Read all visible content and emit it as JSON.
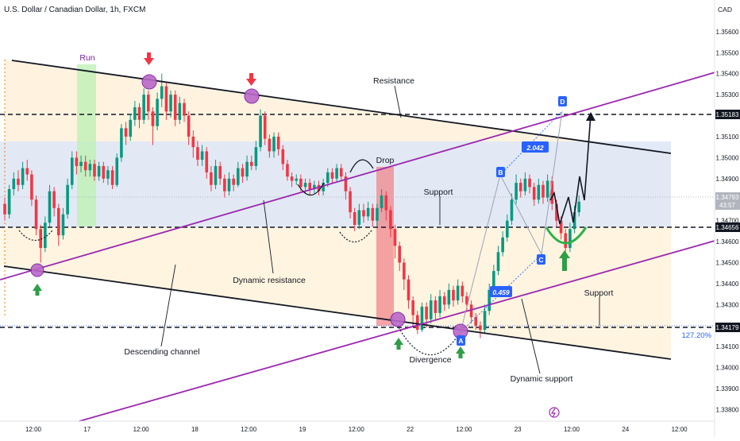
{
  "header": {
    "title": "U.S. Dollar / Canadian Dollar, 1h, FXCM",
    "currency": "CAD"
  },
  "colors": {
    "up": "#089981",
    "down": "#f23645",
    "channel": "#131722",
    "trendline": "#9c27b0",
    "fill_orange": "#fff3e0",
    "fill_blue": "#dde6f7",
    "fill_green": "#bff0b5",
    "fill_red": "#f0868c",
    "marker_purple": "#ba68c8",
    "arrow_red": "#f23645",
    "arrow_green": "#2e9e47",
    "tag_blue": "#2962ff",
    "cup_green": "#2bb24c",
    "last_price_gray": "#b2b5be",
    "fib_blue": "#2962ff"
  },
  "annotations": {
    "run": "Run",
    "resistance": "Resistance",
    "drop": "Drop",
    "support_mid": "Support",
    "support_right": "Support",
    "dynamic_resistance": "Dynamic resistance",
    "descending_channel": "Descending channel",
    "divergence": "Divergence",
    "dynamic_support": "Dynamic support",
    "fib_label": "127.20%",
    "ratio_bd": "2.042",
    "ratio_ac": "0.459",
    "point_a": "A",
    "point_b": "B",
    "point_c": "C",
    "point_d": "D"
  },
  "price_tags": {
    "level_1": "1.35183",
    "level_2": "1.34656",
    "level_3": "1.34179",
    "last_price": "1.34793",
    "countdown": "43:57"
  },
  "chart_data": {
    "type": "candlestick",
    "symbol": "U.S. Dollar / Canadian Dollar",
    "timeframe": "1h",
    "source": "FXCM",
    "yaxis": {
      "label": "CAD",
      "ticks": [
        1.356,
        1.355,
        1.354,
        1.353,
        1.352,
        1.351,
        1.35,
        1.349,
        1.348,
        1.347,
        1.346,
        1.345,
        1.344,
        1.343,
        1.342,
        1.341,
        1.34,
        1.339,
        1.338
      ],
      "tick_labels": [
        "1.35600",
        "1.35500",
        "1.35400",
        "1.35300",
        "1.35200",
        "1.35100",
        "1.35000",
        "1.34900",
        "1.34800",
        "1.34700",
        "1.34600",
        "1.34500",
        "1.34400",
        "1.34300",
        "1.34200",
        "1.34100",
        "1.34000",
        "1.33900",
        "1.33800"
      ],
      "range": [
        1.33745,
        1.35713
      ]
    },
    "xaxis": {
      "tick_labels": [
        "12:00",
        "17",
        "12:00",
        "18",
        "12:00",
        "19",
        "12:00",
        "22",
        "12:00",
        "23",
        "12:00",
        "24",
        "12:00"
      ],
      "tick_hours": [
        0,
        12,
        24,
        36,
        48,
        60,
        72,
        84,
        96,
        108,
        120,
        132,
        144
      ]
    },
    "horizontal_levels": [
      1.35183,
      1.34656,
      1.34179
    ],
    "last_price": 1.34793,
    "fib_extension": "127.20%",
    "harmonic_points": {
      "A": 1.34165,
      "B": 1.34945,
      "C": 1.34555,
      "D": 1.35211
    },
    "ratios": {
      "BD": 2.042,
      "AC": 0.459
    },
    "candles": [
      [
        1.3478,
        1.3473,
        1.3481,
        1.347
      ],
      [
        1.3473,
        1.3485,
        1.3487,
        1.3471
      ],
      [
        1.3485,
        1.349,
        1.3493,
        1.3482
      ],
      [
        1.349,
        1.3487,
        1.3494,
        1.3484
      ],
      [
        1.3487,
        1.3495,
        1.3498,
        1.3485
      ],
      [
        1.3495,
        1.3492,
        1.3499,
        1.3489
      ],
      [
        1.3492,
        1.348,
        1.3494,
        1.3477
      ],
      [
        1.348,
        1.3466,
        1.3482,
        1.3463
      ],
      [
        1.3466,
        1.3457,
        1.3468,
        1.345
      ],
      [
        1.3457,
        1.3469,
        1.3472,
        1.3455
      ],
      [
        1.3469,
        1.3484,
        1.3487,
        1.3467
      ],
      [
        1.3484,
        1.3476,
        1.3486,
        1.3472
      ],
      [
        1.3476,
        1.3463,
        1.3478,
        1.3458
      ],
      [
        1.3463,
        1.3473,
        1.3476,
        1.3461
      ],
      [
        1.3473,
        1.3487,
        1.349,
        1.3471
      ],
      [
        1.3487,
        1.35,
        1.3503,
        1.3485
      ],
      [
        1.35,
        1.3496,
        1.3503,
        1.3492
      ],
      [
        1.3496,
        1.3498,
        1.3501,
        1.3493
      ],
      [
        1.3498,
        1.3494,
        1.3501,
        1.3491
      ],
      [
        1.3494,
        1.3497,
        1.3499,
        1.3491
      ],
      [
        1.3497,
        1.3491,
        1.3499,
        1.3489
      ],
      [
        1.3491,
        1.3496,
        1.3498,
        1.3489
      ],
      [
        1.3496,
        1.349,
        1.3498,
        1.3488
      ],
      [
        1.349,
        1.3494,
        1.3496,
        1.3487
      ],
      [
        1.3494,
        1.3487,
        1.3496,
        1.3485
      ],
      [
        1.3487,
        1.35,
        1.3502,
        1.3486
      ],
      [
        1.35,
        1.3514,
        1.3516,
        1.3498
      ],
      [
        1.3514,
        1.351,
        1.3517,
        1.3506
      ],
      [
        1.351,
        1.3518,
        1.3521,
        1.3508
      ],
      [
        1.3518,
        1.3524,
        1.3527,
        1.3515
      ],
      [
        1.3524,
        1.3518,
        1.3526,
        1.3514
      ],
      [
        1.3518,
        1.353,
        1.3533,
        1.3516
      ],
      [
        1.353,
        1.3522,
        1.3532,
        1.3518
      ],
      [
        1.3522,
        1.3515,
        1.3524,
        1.3506
      ],
      [
        1.3515,
        1.3528,
        1.3531,
        1.3513
      ],
      [
        1.3528,
        1.3534,
        1.354,
        1.3524
      ],
      [
        1.3534,
        1.3522,
        1.3536,
        1.3518
      ],
      [
        1.3522,
        1.353,
        1.3532,
        1.3519
      ],
      [
        1.353,
        1.3518,
        1.3532,
        1.3515
      ],
      [
        1.3518,
        1.3526,
        1.3529,
        1.3516
      ],
      [
        1.3526,
        1.352,
        1.3528,
        1.3517
      ],
      [
        1.352,
        1.351,
        1.3522,
        1.3506
      ],
      [
        1.351,
        1.3505,
        1.3513,
        1.35
      ],
      [
        1.3505,
        1.3499,
        1.3508,
        1.3496
      ],
      [
        1.3499,
        1.3503,
        1.3506,
        1.3496
      ],
      [
        1.3503,
        1.3493,
        1.3505,
        1.349
      ],
      [
        1.3493,
        1.3487,
        1.3496,
        1.3484
      ],
      [
        1.3487,
        1.3496,
        1.3499,
        1.3485
      ],
      [
        1.3496,
        1.349,
        1.3498,
        1.3487
      ],
      [
        1.349,
        1.3484,
        1.3492,
        1.3481
      ],
      [
        1.3484,
        1.349,
        1.3493,
        1.3482
      ],
      [
        1.349,
        1.3487,
        1.3492,
        1.3484
      ],
      [
        1.3487,
        1.3495,
        1.3498,
        1.3486
      ],
      [
        1.3495,
        1.3491,
        1.3497,
        1.3488
      ],
      [
        1.3491,
        1.3498,
        1.3501,
        1.3489
      ],
      [
        1.3498,
        1.3496,
        1.3501,
        1.3494
      ],
      [
        1.3496,
        1.3505,
        1.3508,
        1.3494
      ],
      [
        1.3505,
        1.352,
        1.3523,
        1.3503
      ],
      [
        1.352,
        1.3509,
        1.3522,
        1.3506
      ],
      [
        1.3509,
        1.3503,
        1.3511,
        1.35
      ],
      [
        1.3503,
        1.351,
        1.3512,
        1.35
      ],
      [
        1.351,
        1.3504,
        1.3512,
        1.3501
      ],
      [
        1.3504,
        1.3497,
        1.3506,
        1.3494
      ],
      [
        1.3497,
        1.3491,
        1.3499,
        1.3489
      ],
      [
        1.3491,
        1.3489,
        1.3493,
        1.3486
      ],
      [
        1.3489,
        1.349,
        1.3492,
        1.3487
      ],
      [
        1.349,
        1.3486,
        1.3492,
        1.3484
      ],
      [
        1.3486,
        1.3488,
        1.349,
        1.3483
      ],
      [
        1.3488,
        1.3485,
        1.349,
        1.3482
      ],
      [
        1.3485,
        1.3487,
        1.3489,
        1.3483
      ],
      [
        1.3487,
        1.3484,
        1.3489,
        1.3482
      ],
      [
        1.3484,
        1.3488,
        1.349,
        1.3482
      ],
      [
        1.3488,
        1.3493,
        1.3495,
        1.3486
      ],
      [
        1.3493,
        1.349,
        1.3495,
        1.3488
      ],
      [
        1.349,
        1.3495,
        1.3497,
        1.3488
      ],
      [
        1.3495,
        1.3491,
        1.3497,
        1.3489
      ],
      [
        1.3491,
        1.3484,
        1.3493,
        1.348
      ],
      [
        1.3484,
        1.3474,
        1.3486,
        1.3471
      ],
      [
        1.3474,
        1.3468,
        1.3476,
        1.3465
      ],
      [
        1.3468,
        1.3475,
        1.3478,
        1.3466
      ],
      [
        1.3475,
        1.3472,
        1.3478,
        1.3469
      ],
      [
        1.3472,
        1.3476,
        1.3479,
        1.347
      ],
      [
        1.3476,
        1.347,
        1.3478,
        1.3467
      ],
      [
        1.347,
        1.3476,
        1.3478,
        1.3467
      ],
      [
        1.3476,
        1.3482,
        1.3485,
        1.3474
      ],
      [
        1.3482,
        1.3475,
        1.3484,
        1.347
      ],
      [
        1.3475,
        1.3466,
        1.3477,
        1.3462
      ],
      [
        1.3466,
        1.3458,
        1.3468,
        1.3452
      ],
      [
        1.3458,
        1.345,
        1.346,
        1.3446
      ],
      [
        1.345,
        1.3442,
        1.3452,
        1.3437
      ],
      [
        1.3442,
        1.3432,
        1.3444,
        1.3428
      ],
      [
        1.3432,
        1.3425,
        1.3434,
        1.342
      ],
      [
        1.3425,
        1.3418,
        1.3427,
        1.3416
      ],
      [
        1.3418,
        1.3429,
        1.3431,
        1.3417
      ],
      [
        1.3429,
        1.3423,
        1.3431,
        1.3419
      ],
      [
        1.3423,
        1.3432,
        1.3435,
        1.3421
      ],
      [
        1.3432,
        1.3426,
        1.3434,
        1.3423
      ],
      [
        1.3426,
        1.3434,
        1.3437,
        1.3424
      ],
      [
        1.3434,
        1.343,
        1.3436,
        1.3427
      ],
      [
        1.343,
        1.3437,
        1.344,
        1.3428
      ],
      [
        1.3437,
        1.3432,
        1.3439,
        1.3429
      ],
      [
        1.3432,
        1.3439,
        1.3442,
        1.343
      ],
      [
        1.3439,
        1.3434,
        1.3441,
        1.3431
      ],
      [
        1.3434,
        1.343,
        1.3436,
        1.3427
      ],
      [
        1.343,
        1.3424,
        1.3432,
        1.3421
      ],
      [
        1.3424,
        1.342,
        1.3426,
        1.3418
      ],
      [
        1.342,
        1.3418,
        1.3422,
        1.3414
      ],
      [
        1.3418,
        1.3427,
        1.343,
        1.3416
      ],
      [
        1.3427,
        1.3437,
        1.344,
        1.3425
      ],
      [
        1.3437,
        1.3446,
        1.3449,
        1.3435
      ],
      [
        1.3446,
        1.3455,
        1.3458,
        1.3444
      ],
      [
        1.3455,
        1.3462,
        1.3465,
        1.3453
      ],
      [
        1.3462,
        1.347,
        1.3473,
        1.346
      ],
      [
        1.347,
        1.348,
        1.3483,
        1.3468
      ],
      [
        1.348,
        1.3488,
        1.3492,
        1.3478
      ],
      [
        1.3488,
        1.3484,
        1.349,
        1.3481
      ],
      [
        1.3484,
        1.349,
        1.3493,
        1.3482
      ],
      [
        1.349,
        1.3486,
        1.3492,
        1.3483
      ],
      [
        1.3486,
        1.348,
        1.3488,
        1.3477
      ],
      [
        1.348,
        1.3487,
        1.349,
        1.3478
      ],
      [
        1.3487,
        1.3481,
        1.3489,
        1.3478
      ],
      [
        1.3481,
        1.3489,
        1.3492,
        1.3479
      ],
      [
        1.3489,
        1.3478,
        1.3491,
        1.3475
      ],
      [
        1.3478,
        1.347,
        1.348,
        1.3467
      ],
      [
        1.347,
        1.3464,
        1.3472,
        1.3461
      ],
      [
        1.3464,
        1.3457,
        1.3466,
        1.3453
      ],
      [
        1.3457,
        1.3466,
        1.3469,
        1.3455
      ],
      [
        1.3466,
        1.3474,
        1.3477,
        1.3464
      ],
      [
        1.3474,
        1.3479,
        1.3482,
        1.3472
      ]
    ]
  }
}
